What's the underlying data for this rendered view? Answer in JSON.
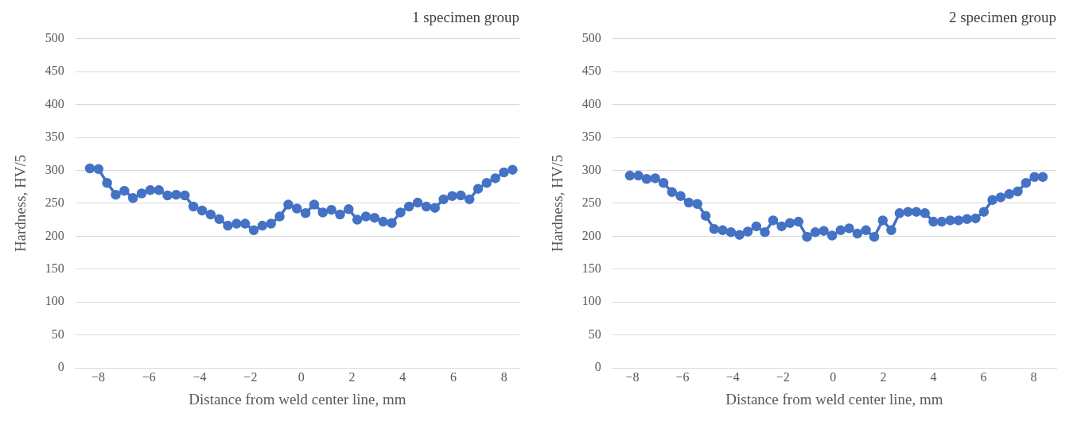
{
  "chart_data": [
    {
      "type": "line",
      "title": "1 specimen group",
      "xlabel": "Distance from weld center line, mm",
      "ylabel": "Hardness, HV/5",
      "xlim": [
        -8.9,
        8.6
      ],
      "xticks": [
        -8,
        -6,
        -4,
        -2,
        0,
        2,
        4,
        6,
        8
      ],
      "ylim": [
        0,
        500
      ],
      "yticks": [
        0,
        50,
        100,
        150,
        200,
        250,
        300,
        350,
        400,
        450,
        500
      ],
      "grid": "y",
      "marker": "circle",
      "line_style": "solid",
      "legend": false,
      "series": [
        {
          "color": "#4472c4",
          "x": [
            -8.33,
            -7.99,
            -7.65,
            -7.31,
            -6.97,
            -6.63,
            -6.29,
            -5.95,
            -5.61,
            -5.27,
            -4.93,
            -4.59,
            -4.25,
            -3.91,
            -3.57,
            -3.23,
            -2.89,
            -2.55,
            -2.21,
            -1.87,
            -1.53,
            -1.19,
            -0.85,
            -0.51,
            -0.17,
            0.17,
            0.51,
            0.85,
            1.19,
            1.53,
            1.87,
            2.21,
            2.55,
            2.89,
            3.23,
            3.57,
            3.91,
            4.25,
            4.59,
            4.93,
            5.27,
            5.61,
            5.95,
            6.29,
            6.63,
            6.97,
            7.31,
            7.65,
            7.99,
            8.33
          ],
          "values": [
            303,
            302,
            281,
            263,
            269,
            258,
            265,
            270,
            270,
            262,
            263,
            262,
            245,
            239,
            233,
            226,
            216,
            219,
            219,
            209,
            216,
            219,
            230,
            248,
            242,
            235,
            248,
            236,
            240,
            233,
            241,
            225,
            230,
            228,
            222,
            220,
            236,
            245,
            251,
            245,
            243,
            256,
            261,
            262,
            256,
            272,
            281,
            288,
            297,
            301
          ]
        }
      ]
    },
    {
      "type": "line",
      "title": "2 specimen group",
      "xlabel": "Distance from weld center line, mm",
      "ylabel": "Hardness, HV/5",
      "xlim": [
        -8.8,
        8.9
      ],
      "xticks": [
        -8,
        -6,
        -4,
        -2,
        0,
        2,
        4,
        6,
        8
      ],
      "ylim": [
        0,
        500
      ],
      "yticks": [
        0,
        50,
        100,
        150,
        200,
        250,
        300,
        350,
        400,
        450,
        500
      ],
      "grid": "y",
      "marker": "circle",
      "line_style": "solid",
      "legend": false,
      "series": [
        {
          "color": "#4472c4",
          "x": [
            -8.1,
            -7.76,
            -7.43,
            -7.09,
            -6.76,
            -6.42,
            -6.08,
            -5.75,
            -5.41,
            -5.08,
            -4.74,
            -4.4,
            -4.07,
            -3.73,
            -3.4,
            -3.06,
            -2.72,
            -2.39,
            -2.05,
            -1.72,
            -1.38,
            -1.04,
            -0.71,
            -0.37,
            -0.04,
            0.3,
            0.64,
            0.97,
            1.31,
            1.64,
            1.98,
            2.32,
            2.65,
            2.99,
            3.32,
            3.66,
            4.0,
            4.33,
            4.67,
            5.0,
            5.34,
            5.68,
            6.01,
            6.35,
            6.68,
            7.02,
            7.36,
            7.69,
            8.03,
            8.36
          ],
          "values": [
            292,
            292,
            287,
            288,
            281,
            267,
            261,
            251,
            249,
            231,
            211,
            209,
            206,
            202,
            207,
            215,
            206,
            224,
            215,
            220,
            222,
            199,
            206,
            208,
            201,
            209,
            212,
            204,
            209,
            199,
            224,
            209,
            235,
            237,
            237,
            235,
            222,
            222,
            224,
            224,
            226,
            227,
            237,
            255,
            259,
            264,
            268,
            281,
            290,
            290
          ]
        }
      ]
    }
  ]
}
